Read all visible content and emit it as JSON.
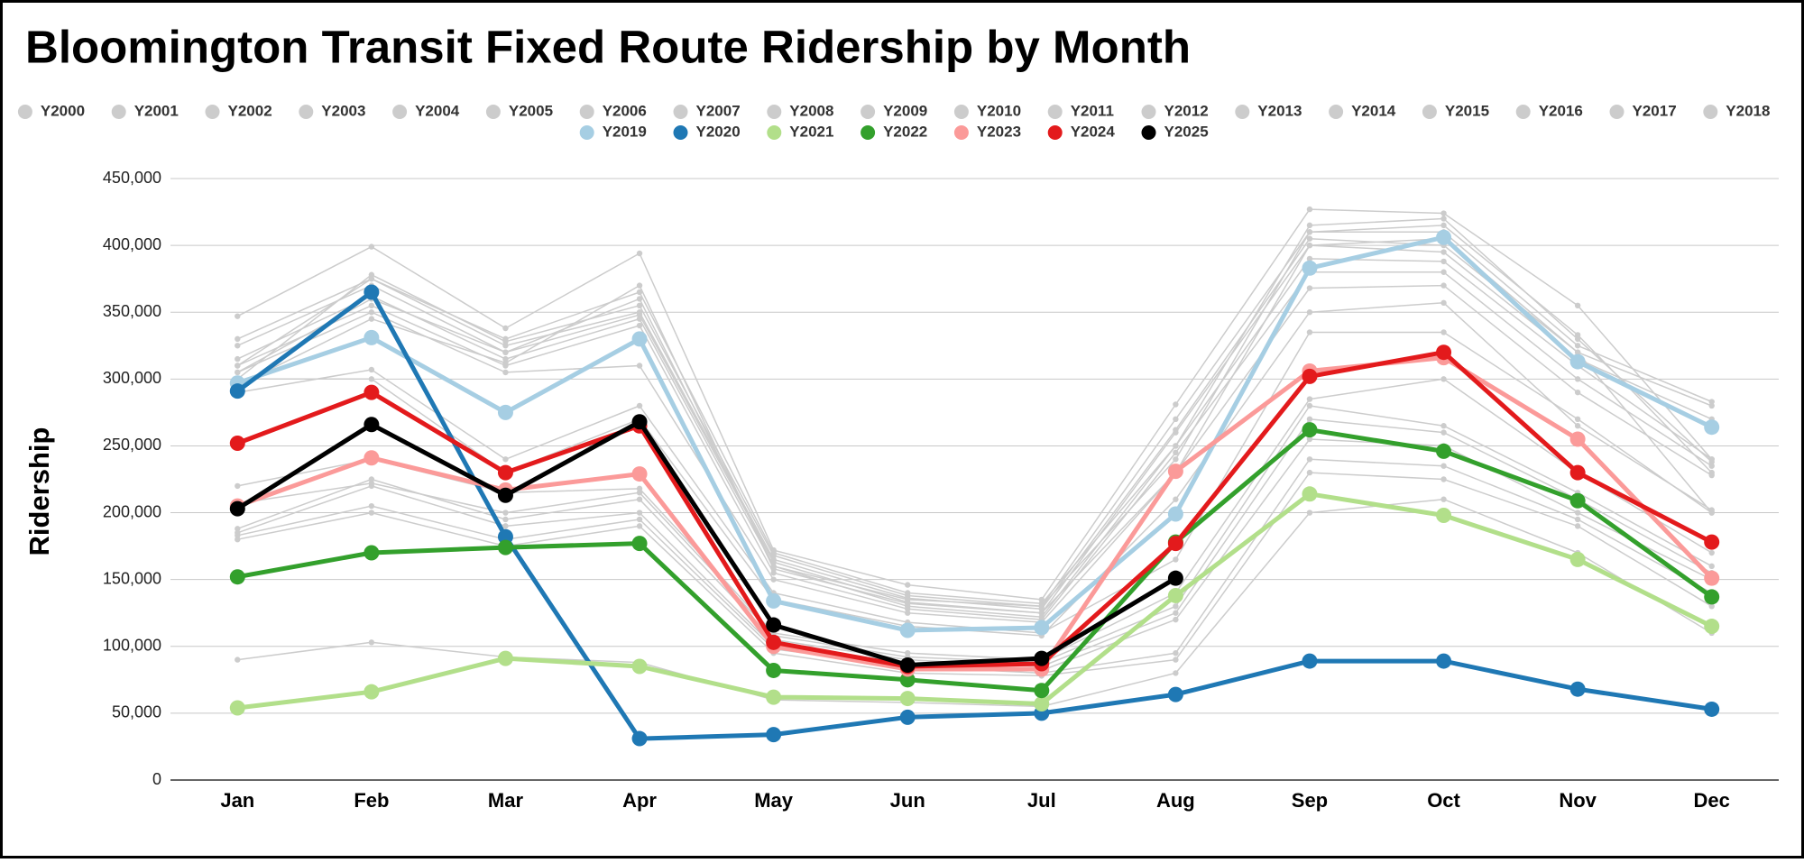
{
  "chart_data": {
    "type": "line",
    "title": "Bloomington Transit Fixed Route Ridership by Month",
    "y_label": "Ridership",
    "categories": [
      "Jan",
      "Feb",
      "Mar",
      "Apr",
      "May",
      "Jun",
      "Jul",
      "Aug",
      "Sep",
      "Oct",
      "Nov",
      "Dec"
    ],
    "ylim": [
      0,
      450000
    ],
    "yticks": [
      0,
      {
        "value": 50000,
        "label": "50,000"
      },
      {
        "value": 100000,
        "label": "100,000"
      },
      {
        "value": 150000,
        "label": "150,000"
      },
      {
        "value": 200000,
        "label": "200,000"
      },
      {
        "value": 250000,
        "label": "250,000"
      },
      {
        "value": 300000,
        "label": "300,000"
      },
      {
        "value": 350000,
        "label": "350,000"
      },
      {
        "value": 400000,
        "label": "400,000"
      },
      {
        "value": 450000,
        "label": "450,000"
      }
    ],
    "grid": true,
    "legend": "top",
    "series": [
      {
        "name": "Y2000",
        "color": "#cccccc",
        "values": [
          90000,
          103000,
          92000,
          88000,
          60000,
          58000,
          55000,
          80000,
          200000,
          210000,
          170000,
          110000
        ]
      },
      {
        "name": "Y2001",
        "color": "#cccccc",
        "values": [
          180000,
          200000,
          175000,
          190000,
          95000,
          80000,
          78000,
          90000,
          230000,
          225000,
          190000,
          130000
        ]
      },
      {
        "name": "Y2002",
        "color": "#cccccc",
        "values": [
          183000,
          205000,
          180000,
          195000,
          98000,
          85000,
          80000,
          95000,
          240000,
          235000,
          195000,
          140000
        ]
      },
      {
        "name": "Y2003",
        "color": "#cccccc",
        "values": [
          185000,
          220000,
          190000,
          200000,
          100000,
          88000,
          82000,
          120000,
          255000,
          250000,
          200000,
          150000
        ]
      },
      {
        "name": "Y2004",
        "color": "#cccccc",
        "values": [
          188000,
          225000,
          195000,
          210000,
          105000,
          90000,
          85000,
          125000,
          270000,
          260000,
          210000,
          155000
        ]
      },
      {
        "name": "Y2005",
        "color": "#cccccc",
        "values": [
          207000,
          222000,
          200000,
          215000,
          108000,
          92000,
          88000,
          130000,
          280000,
          265000,
          215000,
          160000
        ]
      },
      {
        "name": "Y2006",
        "color": "#cccccc",
        "values": [
          220000,
          240000,
          215000,
          218000,
          110000,
          95000,
          90000,
          140000,
          285000,
          300000,
          230000,
          170000
        ]
      },
      {
        "name": "Y2007",
        "color": "#cccccc",
        "values": [
          290000,
          307000,
          240000,
          280000,
          140000,
          118000,
          110000,
          165000,
          335000,
          335000,
          270000,
          200000
        ]
      },
      {
        "name": "Y2008",
        "color": "#cccccc",
        "values": [
          300000,
          300000,
          230000,
          270000,
          135000,
          115000,
          108000,
          210000,
          350000,
          357000,
          265000,
          202000
        ]
      },
      {
        "name": "Y2009",
        "color": "#cccccc",
        "values": [
          305000,
          350000,
          305000,
          310000,
          150000,
          125000,
          118000,
          230000,
          368000,
          370000,
          290000,
          228000
        ]
      },
      {
        "name": "Y2010",
        "color": "#cccccc",
        "values": [
          310000,
          355000,
          310000,
          340000,
          155000,
          128000,
          120000,
          245000,
          380000,
          380000,
          300000,
          235000
        ]
      },
      {
        "name": "Y2011",
        "color": "#cccccc",
        "values": [
          315000,
          362000,
          315000,
          345000,
          160000,
          130000,
          122000,
          250000,
          390000,
          388000,
          310000,
          240000
        ]
      },
      {
        "name": "Y2012",
        "color": "#cccccc",
        "values": [
          325000,
          370000,
          320000,
          348000,
          163000,
          133000,
          125000,
          260000,
          400000,
          395000,
          315000,
          270000
        ]
      },
      {
        "name": "Y2013",
        "color": "#cccccc",
        "values": [
          330000,
          375000,
          325000,
          350000,
          165000,
          136000,
          128000,
          262000,
          405000,
          400000,
          320000,
          280000
        ]
      },
      {
        "name": "Y2014",
        "color": "#cccccc",
        "values": [
          300000,
          378000,
          328000,
          355000,
          168000,
          138000,
          130000,
          270000,
          410000,
          410000,
          325000,
          283000
        ]
      },
      {
        "name": "Y2015",
        "color": "#cccccc",
        "values": [
          347000,
          399000,
          338000,
          394000,
          172000,
          146000,
          135000,
          281000,
          427000,
          424000,
          355000,
          240000
        ]
      },
      {
        "name": "Y2016",
        "color": "#cccccc",
        "values": [
          310000,
          375000,
          330000,
          365000,
          170000,
          140000,
          132000,
          250000,
          415000,
          420000,
          330000,
          238000
        ]
      },
      {
        "name": "Y2017",
        "color": "#cccccc",
        "values": [
          305000,
          360000,
          320000,
          360000,
          160000,
          135000,
          130000,
          240000,
          410000,
          415000,
          333000,
          230000
        ]
      },
      {
        "name": "Y2018",
        "color": "#cccccc",
        "values": [
          295000,
          345000,
          312000,
          370000,
          158000,
          132000,
          125000,
          230000,
          400000,
          405000,
          320000,
          200000
        ]
      },
      {
        "name": "Y2019",
        "color": "#a6cee3",
        "values": [
          297000,
          331000,
          275000,
          330000,
          134000,
          112000,
          114000,
          199000,
          383000,
          406000,
          313000,
          264000
        ]
      },
      {
        "name": "Y2020",
        "color": "#1f78b4",
        "values": [
          291000,
          365000,
          182000,
          31000,
          34000,
          47000,
          50000,
          64000,
          89000,
          89000,
          68000,
          53000
        ]
      },
      {
        "name": "Y2021",
        "color": "#b2df8a",
        "values": [
          54000,
          66000,
          91000,
          85000,
          62000,
          61000,
          57000,
          138000,
          214000,
          198000,
          165000,
          115000
        ]
      },
      {
        "name": "Y2022",
        "color": "#33a02c",
        "values": [
          152000,
          170000,
          174000,
          177000,
          82000,
          75000,
          67000,
          178000,
          262000,
          246000,
          209000,
          137000
        ]
      },
      {
        "name": "Y2023",
        "color": "#fb9a99",
        "values": [
          205000,
          241000,
          217000,
          229000,
          100000,
          83000,
          83000,
          231000,
          306000,
          316000,
          255000,
          151000
        ]
      },
      {
        "name": "Y2024",
        "color": "#e31a1c",
        "values": [
          252000,
          290000,
          230000,
          265000,
          103000,
          85000,
          87000,
          177000,
          302000,
          320000,
          230000,
          178000
        ]
      },
      {
        "name": "Y2025",
        "color": "#000000",
        "values": [
          203000,
          266000,
          213000,
          268000,
          116000,
          86000,
          91000,
          151000,
          null,
          null,
          null,
          null
        ]
      }
    ]
  }
}
